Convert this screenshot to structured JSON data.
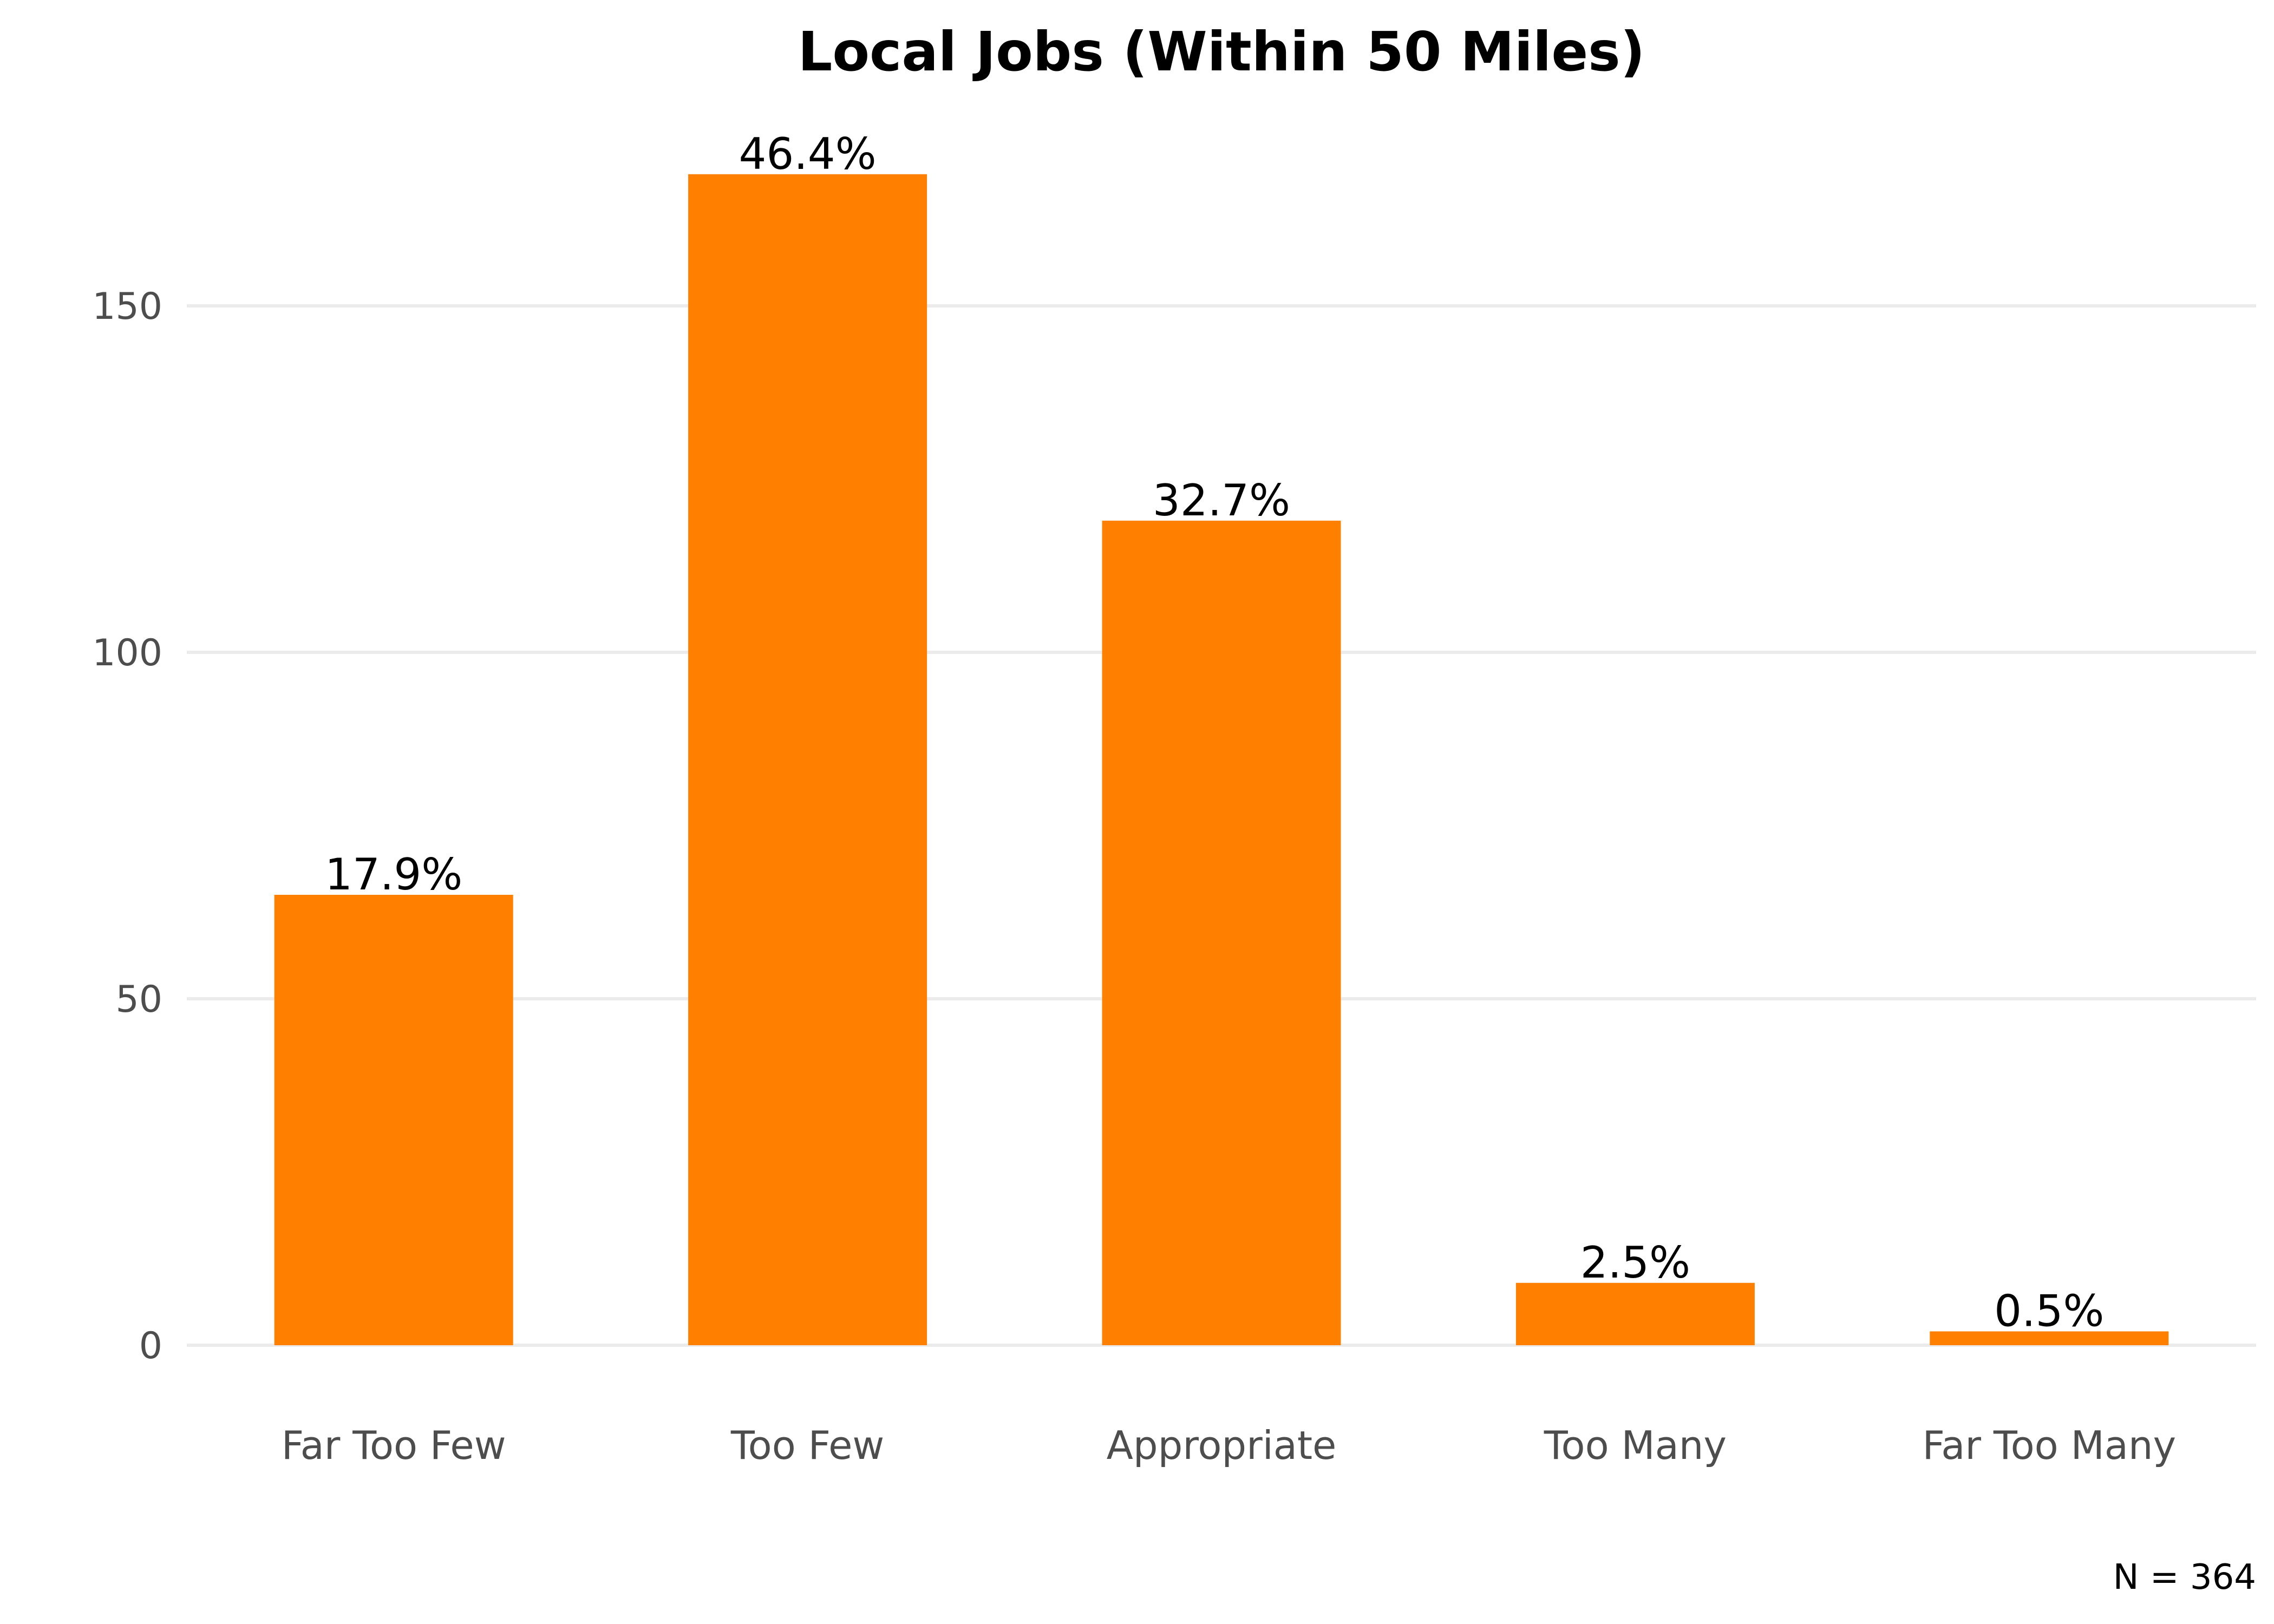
{
  "chart_data": {
    "type": "bar",
    "title": "Local Jobs (Within 50 Miles)",
    "categories": [
      "Far Too Few",
      "Too Few",
      "Appropriate",
      "Too Many",
      "Far Too Many"
    ],
    "values": [
      65,
      169,
      119,
      9,
      2
    ],
    "data_labels": [
      "17.9%",
      "46.4%",
      "32.7%",
      "2.5%",
      "0.5%"
    ],
    "xlabel": "",
    "ylabel": "",
    "ylim": [
      0,
      175
    ],
    "yticks": [
      0,
      50,
      100,
      150
    ],
    "grid": true,
    "bar_color": "#FF8000",
    "caption": "N = 364"
  }
}
